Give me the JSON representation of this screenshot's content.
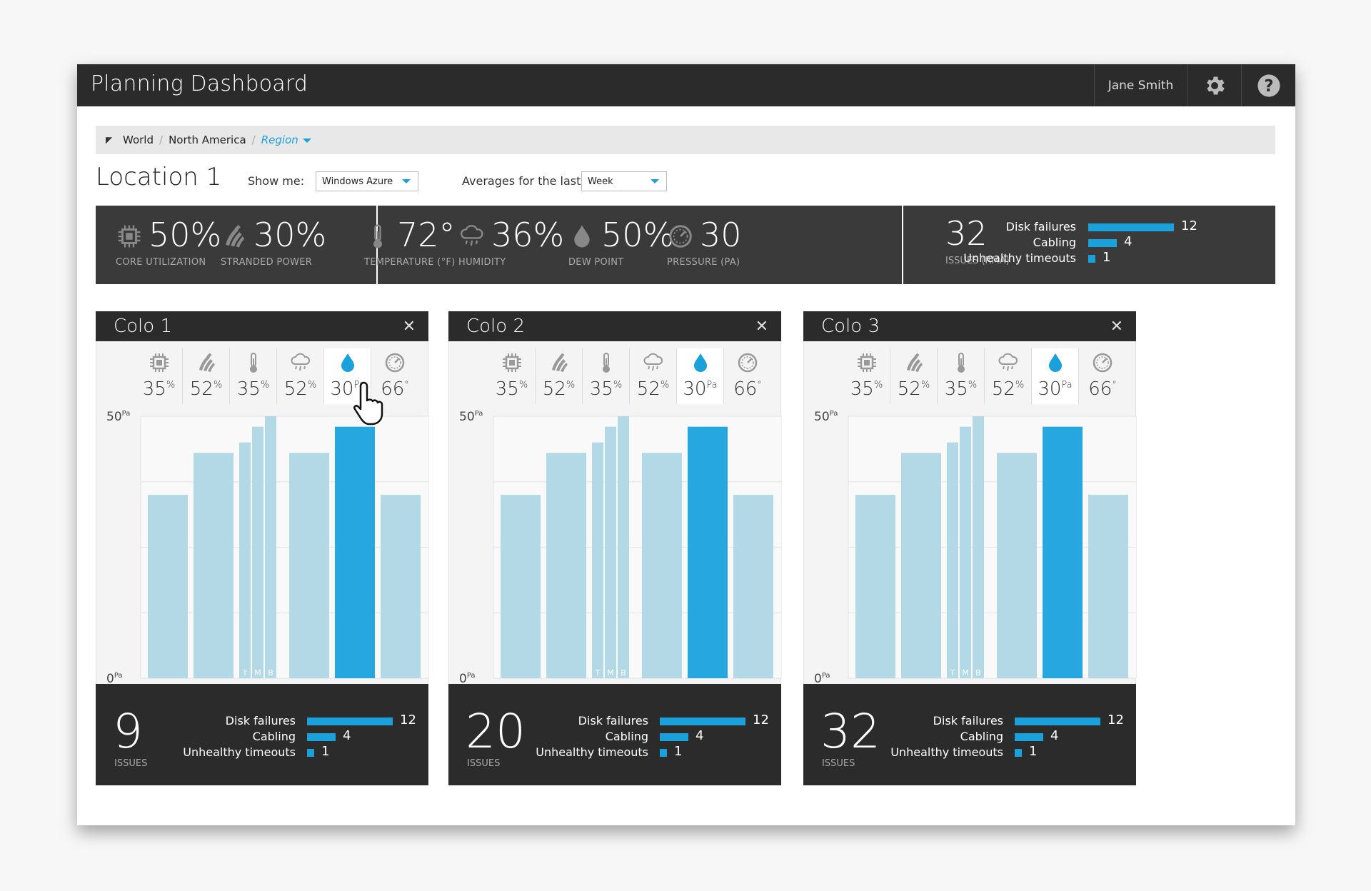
{
  "header": {
    "title": "Planning Dashboard",
    "user": "Jane Smith",
    "settings_icon": "gear-icon",
    "help_icon": "help-icon"
  },
  "breadcrumb": {
    "items": [
      "World",
      "North America"
    ],
    "current": "Region"
  },
  "location": {
    "title": "Location 1",
    "show_me_label": "Show me:",
    "show_me_value": "Windows Azure",
    "averages_label": "Averages for the last",
    "averages_value": "Week"
  },
  "summary": {
    "metrics": [
      {
        "value": "50%",
        "label": "CORE UTILIZATION",
        "icon": "chip-icon"
      },
      {
        "value": "30%",
        "label": "STRANDED POWER",
        "icon": "power-icon"
      },
      {
        "value": "72°",
        "label": "TEMPERATURE (°F)",
        "icon": "thermometer-icon"
      },
      {
        "value": "36%",
        "label": "HUMIDITY",
        "icon": "cloud-rain-icon"
      },
      {
        "value": "50%",
        "label": "DEW POINT",
        "icon": "drop-icon"
      },
      {
        "value": "30",
        "label": "PRESSURE (PA)",
        "icon": "gauge-icon"
      }
    ],
    "issues_value": "32",
    "issues_label": "ISSUES (RMA)",
    "breakdown": [
      {
        "label": "Disk failures",
        "value": 12
      },
      {
        "label": "Cabling",
        "value": 4
      },
      {
        "label": "Unhealthy timeouts",
        "value": 1
      }
    ]
  },
  "colors": {
    "accent": "#1aa0db",
    "bar_light": "#b3d9e6",
    "bar_active": "#27a7df",
    "dark": "#2b2b2b"
  },
  "colos": [
    {
      "title": "Colo 1",
      "tabs": [
        {
          "icon": "chip-icon",
          "value": "35",
          "unit": "%"
        },
        {
          "icon": "power-icon",
          "value": "52",
          "unit": "%"
        },
        {
          "icon": "thermometer-icon",
          "value": "35",
          "unit": "%"
        },
        {
          "icon": "cloud-rain-icon",
          "value": "52",
          "unit": "%"
        },
        {
          "icon": "drop-icon",
          "value": "30",
          "unit": "Pa"
        },
        {
          "icon": "gauge-icon",
          "value": "66",
          "unit": "°"
        }
      ],
      "active_tab": 4,
      "issues": "9",
      "issues_label": "ISSUES",
      "breakdown": [
        {
          "label": "Disk failures",
          "value": 12
        },
        {
          "label": "Cabling",
          "value": 4
        },
        {
          "label": "Unhealthy timeouts",
          "value": 1
        }
      ]
    },
    {
      "title": "Colo 2",
      "tabs": [
        {
          "icon": "chip-icon",
          "value": "35",
          "unit": "%"
        },
        {
          "icon": "power-icon",
          "value": "52",
          "unit": "%"
        },
        {
          "icon": "thermometer-icon",
          "value": "35",
          "unit": "%"
        },
        {
          "icon": "cloud-rain-icon",
          "value": "52",
          "unit": "%"
        },
        {
          "icon": "drop-icon",
          "value": "30",
          "unit": "Pa"
        },
        {
          "icon": "gauge-icon",
          "value": "66",
          "unit": "°"
        }
      ],
      "active_tab": 4,
      "issues": "20",
      "issues_label": "ISSUES",
      "breakdown": [
        {
          "label": "Disk failures",
          "value": 12
        },
        {
          "label": "Cabling",
          "value": 4
        },
        {
          "label": "Unhealthy timeouts",
          "value": 1
        }
      ]
    },
    {
      "title": "Colo 3",
      "tabs": [
        {
          "icon": "chip-icon",
          "value": "35",
          "unit": "%"
        },
        {
          "icon": "power-icon",
          "value": "52",
          "unit": "%"
        },
        {
          "icon": "thermometer-icon",
          "value": "35",
          "unit": "%"
        },
        {
          "icon": "cloud-rain-icon",
          "value": "52",
          "unit": "%"
        },
        {
          "icon": "drop-icon",
          "value": "30",
          "unit": "Pa"
        },
        {
          "icon": "gauge-icon",
          "value": "66",
          "unit": "°"
        }
      ],
      "active_tab": 4,
      "issues": "32",
      "issues_label": "ISSUES",
      "breakdown": [
        {
          "label": "Disk failures",
          "value": 12
        },
        {
          "label": "Cabling",
          "value": 4
        },
        {
          "label": "Unhealthy timeouts",
          "value": 1
        }
      ]
    }
  ],
  "chart_data": {
    "type": "bar",
    "ylim": [
      0,
      50
    ],
    "y_tick_labels": [
      {
        "value": 0,
        "label": "0",
        "unit": "Pa"
      },
      {
        "value": 50,
        "label": "50",
        "unit": "Pa"
      }
    ],
    "bars": [
      {
        "value": 35,
        "highlight": false
      },
      {
        "value": 43,
        "highlight": false
      },
      {
        "group": true,
        "sub": [
          {
            "label": "T",
            "value": 45
          },
          {
            "label": "M",
            "value": 48
          },
          {
            "label": "B",
            "value": 50
          }
        ]
      },
      {
        "value": 43,
        "highlight": false
      },
      {
        "value": 48,
        "highlight": true
      },
      {
        "value": 35,
        "highlight": false
      }
    ]
  }
}
